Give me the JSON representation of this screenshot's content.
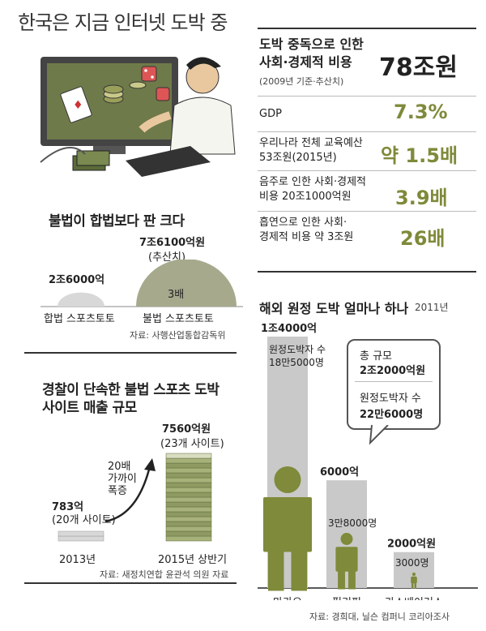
{
  "title": "한국은 지금 인터넷 도박 중",
  "cost": {
    "heading_line1": "도박 중독으로 인한",
    "heading_line2": "사회·경제적 비용",
    "heading_note": "(2009년 기준·추산치)",
    "total": "78조원",
    "rows": [
      {
        "label_line1": "GDP",
        "label_line2": "",
        "value": "7.3%"
      },
      {
        "label_line1": "우리나라 전체 교육예산",
        "label_line2": "53조원(2015년)",
        "value": "약 1.5배"
      },
      {
        "label_line1": "음주로 인한 사회·경제적",
        "label_line2": "비용 20조1000억원",
        "value": "3.9배"
      },
      {
        "label_line1": "흡연으로 인한 사회·",
        "label_line2": "경제적 비용 약 3조원",
        "value": "26배"
      }
    ]
  },
  "illegal": {
    "heading": "불법이 합법보다 판 크다",
    "legal_value": "2조6000억",
    "legal_label": "합법 스포츠토토",
    "illegal_value": "7조6100억원",
    "illegal_note": "(추산치)",
    "illegal_ratio": "3배",
    "illegal_label": "불법 스포츠토토",
    "source": "자료: 사행산업통합감독위",
    "chart_values": {
      "legal": 2.6,
      "illegal": 7.61
    }
  },
  "police": {
    "heading_line1": "경찰이 단속한 불법 스포츠 도박",
    "heading_line2": "사이트 매출 규모",
    "y2013_value": "783억",
    "y2013_sites": "(20개 사이트)",
    "y2013_label": "2013년",
    "y2015_value": "7560억원",
    "y2015_sites": "(23개 사이트)",
    "y2015_label": "2015년 상반기",
    "growth_line1": "20배",
    "growth_line2": "가까이",
    "growth_line3": "폭증",
    "source": "자료: 새정치연합 윤관석 의원 자료",
    "chart_values": {
      "y2013": 783,
      "y2015": 7560
    }
  },
  "overseas": {
    "heading": "해외 원정 도박 얼마나 하나",
    "year": "2011년",
    "callout_title": "총 규모",
    "callout_total": "2조2000억원",
    "callout_people_label": "원정도박자 수",
    "callout_people": "22만6000명",
    "source": "자료: 경희대, 닐슨 컴퍼니 코리아조사"
  },
  "chart_data": [
    {
      "type": "bar",
      "title": "해외 원정 도박 얼마나 하나",
      "categories": [
        "마카오",
        "필리핀",
        "라스베이거스"
      ],
      "series": [
        {
          "values": [
            14000,
            6000,
            2000
          ],
          "value_labels": [
            "1조4000억",
            "6000억",
            "2000억원"
          ]
        },
        {
          "values": [
            185000,
            38000,
            3000
          ],
          "value_labels": [
            "원정도박자 수 18만5000명",
            "3만8000명",
            "3000명"
          ]
        }
      ]
    }
  ]
}
